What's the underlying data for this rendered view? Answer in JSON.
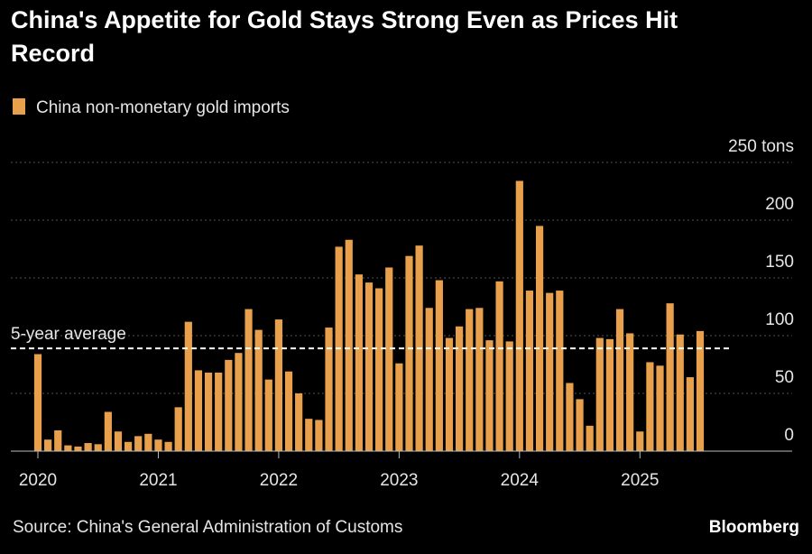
{
  "chart_data": {
    "type": "bar",
    "title": "China's Appetite for Gold Stays Strong Even as Prices Hit Record",
    "categories": [
      "2020",
      null,
      null,
      null,
      null,
      null,
      null,
      null,
      null,
      null,
      null,
      null,
      "2021",
      null,
      null,
      null,
      null,
      null,
      null,
      null,
      null,
      null,
      null,
      null,
      "2022",
      null,
      null,
      null,
      null,
      null,
      null,
      null,
      null,
      null,
      null,
      null,
      "2023",
      null,
      null,
      null,
      null,
      null,
      null,
      null,
      null,
      null,
      null,
      null,
      "2024",
      null,
      null,
      null,
      null,
      null,
      null,
      null,
      null,
      null,
      null,
      null,
      "2025",
      null,
      null,
      null,
      null,
      null,
      null
    ],
    "series": [
      {
        "name": "China non-monetary gold imports",
        "color": "#e8a04c",
        "values": [
          84,
          10,
          18,
          5,
          4,
          7,
          6,
          34,
          17,
          8,
          13,
          15,
          10,
          8,
          38,
          112,
          70,
          68,
          68,
          79,
          85,
          123,
          105,
          62,
          114,
          69,
          50,
          28,
          27,
          107,
          177,
          183,
          153,
          146,
          141,
          159,
          76,
          169,
          178,
          124,
          148,
          98,
          108,
          123,
          124,
          96,
          147,
          95,
          234,
          139,
          195,
          137,
          139,
          59,
          45,
          22,
          98,
          97,
          123,
          102,
          17,
          77,
          74,
          128,
          101,
          64,
          104
        ]
      }
    ],
    "average": {
      "value": 89,
      "label": "5-year average"
    },
    "ylim": [
      0,
      250
    ],
    "yticks": [
      0,
      50,
      100,
      150,
      200,
      {
        "value": 250,
        "label": "250 tons"
      }
    ],
    "grid": true,
    "source": "Source: China's General Administration of Customs",
    "brand": "Bloomberg"
  }
}
